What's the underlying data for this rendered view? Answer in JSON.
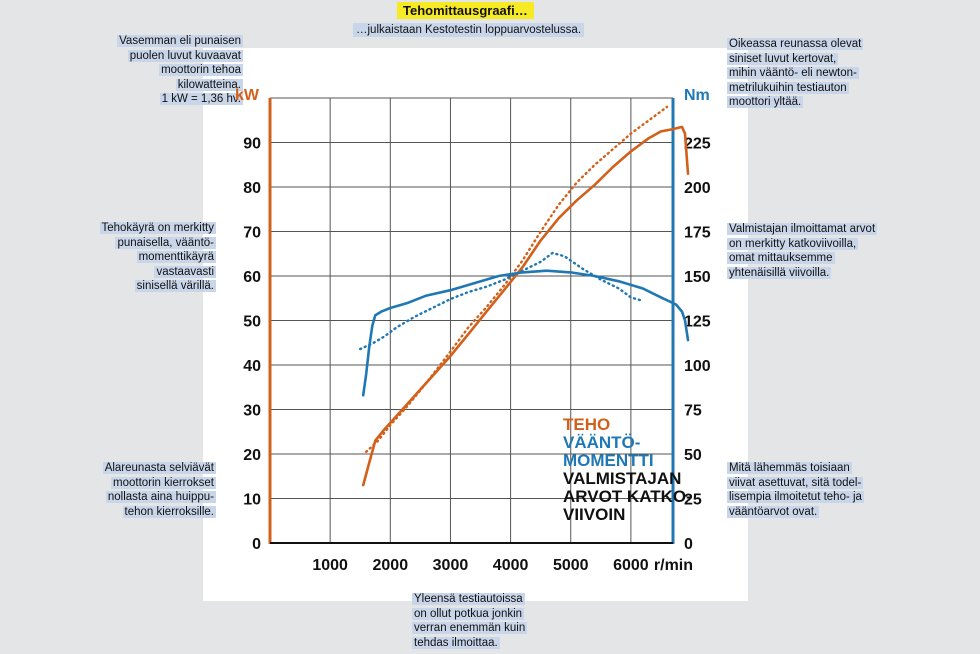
{
  "header": {
    "title": "Tehomittausgraafi…",
    "subtitle": "…julkaistaan Kestotestin loppuarvostelussa."
  },
  "notes": {
    "top_left": [
      "Vasemman eli punaisen",
      "puolen luvut kuvaavat",
      "moottorin tehoa",
      "kilowatteina.",
      "1 kW = 1,36 hv."
    ],
    "mid_left": [
      "Tehokäyrä on merkitty",
      "punaisella, vääntö-",
      "momenttikäyrä",
      "vastaavasti",
      "sinisellä värillä."
    ],
    "bottom_left": [
      "Alareunasta selviävät",
      "moottorin kierrokset",
      "nollasta aina huippu-",
      "tehon kierroksille."
    ],
    "top_right": [
      "Oikeassa reunassa olevat",
      "siniset luvut kertovat,",
      "mihin vääntö- eli newton-",
      "metrilukuihin testiauton",
      "moottori yltää."
    ],
    "mid_right": [
      "Valmistajan ilmoittamat arvot",
      "on merkitty katkoviivoilla,",
      "omat mittauksemme",
      "yhtenäisillä viivoilla."
    ],
    "bottom_right": [
      "Mitä lähemmäs toisiaan",
      "viivat asettuvat, sitä todel-",
      "lisempia ilmoitetut teho- ja",
      "vääntöarvot ovat."
    ],
    "bottom_center": [
      "Yleensä testiautoissa",
      "on ollut potkua jonkin",
      "verran enemmän kuin",
      "tehdas ilmoittaa."
    ]
  },
  "colors": {
    "power": "#d2601a",
    "torque": "#1f78b4",
    "text": "#111111",
    "note_bg": "#c9d6ea",
    "title_bg": "#f6ea25"
  },
  "chart_data": {
    "type": "line",
    "title": "",
    "xlabel": "",
    "xlim": [
      0,
      6700
    ],
    "x_ticks": [
      1000,
      2000,
      3000,
      4000,
      5000,
      6000
    ],
    "x_tick_labels": [
      "1000",
      "2000",
      "3000",
      "4000",
      "5000",
      "6000"
    ],
    "x_unit": "r/min",
    "y_left": {
      "unit": "kW",
      "lim": [
        0,
        100
      ],
      "ticks": [
        0,
        10,
        20,
        30,
        40,
        50,
        60,
        70,
        80,
        90
      ]
    },
    "y_right": {
      "unit": "Nm",
      "lim": [
        0,
        250
      ],
      "ticks": [
        0,
        25,
        50,
        75,
        100,
        125,
        150,
        175,
        200,
        225
      ]
    },
    "grid": true,
    "legend_position": "bottom-right",
    "legend": [
      "TEHO",
      "VÄÄNTÖ-",
      "MOMENTTI",
      "VALMISTAJAN",
      "ARVOT KATKO-",
      "VIIVOIN"
    ],
    "series": [
      {
        "name": "TEHO",
        "axis": "left",
        "style": "solid",
        "points": [
          [
            1550,
            13
          ],
          [
            1650,
            18
          ],
          [
            1750,
            23
          ],
          [
            1900,
            25.5
          ],
          [
            2100,
            28.5
          ],
          [
            2400,
            33
          ],
          [
            2700,
            37.5
          ],
          [
            3000,
            42
          ],
          [
            3300,
            47
          ],
          [
            3600,
            52
          ],
          [
            3900,
            57
          ],
          [
            4200,
            62
          ],
          [
            4500,
            68
          ],
          [
            4800,
            73
          ],
          [
            5100,
            77
          ],
          [
            5400,
            80.5
          ],
          [
            5700,
            84.5
          ],
          [
            6000,
            88
          ],
          [
            6300,
            91
          ],
          [
            6500,
            92.5
          ],
          [
            6700,
            93
          ],
          [
            6850,
            93.5
          ],
          [
            6900,
            92
          ],
          [
            6950,
            83
          ]
        ]
      },
      {
        "name": "TEHO (valmistaja)",
        "axis": "left",
        "style": "dotted",
        "points": [
          [
            1600,
            20.5
          ],
          [
            1800,
            23
          ],
          [
            2000,
            26.5
          ],
          [
            2300,
            31
          ],
          [
            2600,
            36
          ],
          [
            3000,
            43
          ],
          [
            3300,
            48.5
          ],
          [
            3600,
            53
          ],
          [
            3900,
            58
          ],
          [
            4200,
            63.5
          ],
          [
            4500,
            70
          ],
          [
            4800,
            76
          ],
          [
            5100,
            81
          ],
          [
            5400,
            85
          ],
          [
            5700,
            88.5
          ],
          [
            6000,
            92
          ],
          [
            6300,
            95
          ],
          [
            6600,
            98
          ]
        ]
      },
      {
        "name": "VÄÄNTÖMOMENTTI",
        "axis": "right",
        "style": "solid",
        "points": [
          [
            1550,
            83
          ],
          [
            1600,
            95
          ],
          [
            1650,
            110
          ],
          [
            1700,
            122
          ],
          [
            1750,
            128
          ],
          [
            1850,
            130
          ],
          [
            2000,
            132
          ],
          [
            2300,
            135
          ],
          [
            2600,
            139
          ],
          [
            3000,
            142
          ],
          [
            3400,
            146
          ],
          [
            3800,
            150
          ],
          [
            4200,
            152
          ],
          [
            4600,
            153
          ],
          [
            5000,
            152
          ],
          [
            5400,
            150
          ],
          [
            5800,
            147
          ],
          [
            6200,
            143
          ],
          [
            6500,
            138
          ],
          [
            6750,
            134
          ],
          [
            6850,
            130
          ],
          [
            6900,
            125
          ],
          [
            6950,
            114
          ]
        ]
      },
      {
        "name": "VÄÄNTÖMOMENTTI (valmistaja)",
        "axis": "right",
        "style": "dotted",
        "points": [
          [
            1500,
            109
          ],
          [
            1700,
            112
          ],
          [
            1900,
            116
          ],
          [
            2100,
            121
          ],
          [
            2400,
            127
          ],
          [
            2700,
            132
          ],
          [
            3000,
            137
          ],
          [
            3300,
            141
          ],
          [
            3600,
            144
          ],
          [
            3900,
            148
          ],
          [
            4200,
            153
          ],
          [
            4500,
            158
          ],
          [
            4700,
            163
          ],
          [
            4900,
            161
          ],
          [
            5200,
            154
          ],
          [
            5500,
            148
          ],
          [
            5800,
            143
          ],
          [
            6000,
            138
          ],
          [
            6200,
            136
          ]
        ]
      }
    ]
  }
}
